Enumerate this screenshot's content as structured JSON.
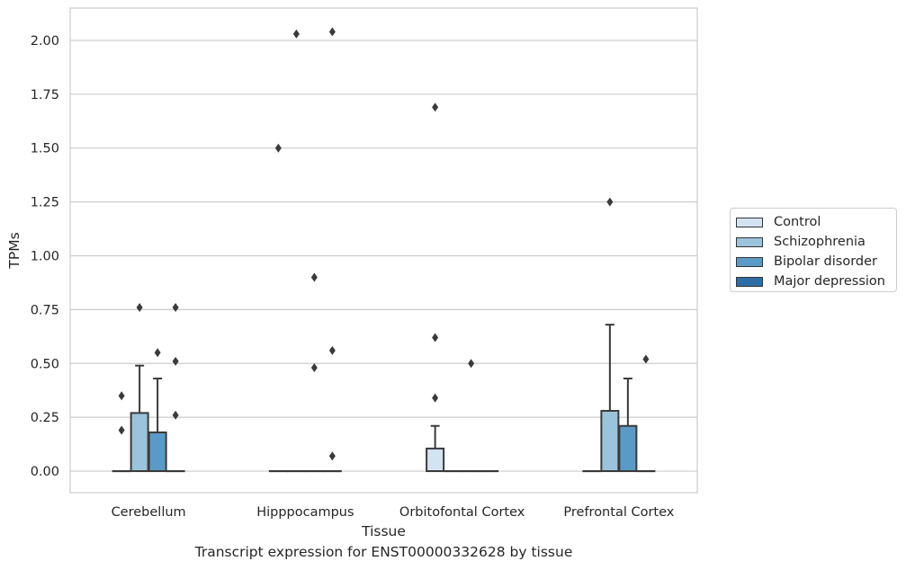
{
  "chart_data": {
    "type": "box",
    "title": "",
    "caption": "Transcript expression for ENST00000332628 by tissue",
    "xlabel": "Tissue",
    "ylabel": "TPMs",
    "ylim": [
      -0.1,
      2.15
    ],
    "yticks": [
      0.0,
      0.25,
      0.5,
      0.75,
      1.0,
      1.25,
      1.5,
      1.75,
      2.0
    ],
    "ytick_labels": [
      "0.00",
      "0.25",
      "0.50",
      "0.75",
      "1.00",
      "1.25",
      "1.50",
      "1.75",
      "2.00"
    ],
    "grid": "horizontal",
    "legend_position": "right-outside",
    "categories": [
      "Cerebellum",
      "Hipppocampus",
      "Orbitofontal Cortex",
      "Prefrontal Cortex"
    ],
    "series": [
      {
        "name": "Control",
        "color": "#d3e3f2",
        "boxes": [
          {
            "q1": 0,
            "median": 0,
            "q3": 0,
            "whislo": 0,
            "whishi": 0,
            "fliers": [
              0.19,
              0.35
            ]
          },
          {
            "q1": 0,
            "median": 0,
            "q3": 0,
            "whislo": 0,
            "whishi": 0,
            "fliers": [
              1.5
            ]
          },
          {
            "q1": 0,
            "median": 0,
            "q3": 0.105,
            "whislo": 0,
            "whishi": 0.21,
            "fliers": [
              0.34,
              0.62,
              1.69
            ]
          },
          {
            "q1": 0,
            "median": 0,
            "q3": 0,
            "whislo": 0,
            "whishi": 0,
            "fliers": []
          }
        ]
      },
      {
        "name": "Schizophrenia",
        "color": "#9cc3dc",
        "boxes": [
          {
            "q1": 0,
            "median": 0,
            "q3": 0.27,
            "whislo": 0,
            "whishi": 0.49,
            "fliers": [
              0.76
            ]
          },
          {
            "q1": 0,
            "median": 0,
            "q3": 0,
            "whislo": 0,
            "whishi": 0,
            "fliers": [
              2.03
            ]
          },
          {
            "q1": 0,
            "median": 0,
            "q3": 0,
            "whislo": 0,
            "whishi": 0,
            "fliers": []
          },
          {
            "q1": 0,
            "median": 0,
            "q3": 0.28,
            "whislo": 0,
            "whishi": 0.68,
            "fliers": [
              1.25
            ]
          }
        ]
      },
      {
        "name": "Bipolar disorder",
        "color": "#5b9ac6",
        "boxes": [
          {
            "q1": 0,
            "median": 0,
            "q3": 0.18,
            "whislo": 0,
            "whishi": 0.43,
            "fliers": [
              0.55
            ]
          },
          {
            "q1": 0,
            "median": 0,
            "q3": 0,
            "whislo": 0,
            "whishi": 0,
            "fliers": [
              0.48,
              0.9
            ]
          },
          {
            "q1": 0,
            "median": 0,
            "q3": 0,
            "whislo": 0,
            "whishi": 0,
            "fliers": [
              0.5
            ]
          },
          {
            "q1": 0,
            "median": 0,
            "q3": 0.21,
            "whislo": 0,
            "whishi": 0.43,
            "fliers": []
          }
        ]
      },
      {
        "name": "Major depression",
        "color": "#2e6ea6",
        "boxes": [
          {
            "q1": 0,
            "median": 0,
            "q3": 0,
            "whislo": 0,
            "whishi": 0,
            "fliers": [
              0.26,
              0.51,
              0.76
            ]
          },
          {
            "q1": 0,
            "median": 0,
            "q3": 0,
            "whislo": 0,
            "whishi": 0,
            "fliers": [
              0.07,
              0.56,
              2.04
            ]
          },
          {
            "q1": 0,
            "median": 0,
            "q3": 0,
            "whislo": 0,
            "whishi": 0,
            "fliers": []
          },
          {
            "q1": 0,
            "median": 0,
            "q3": 0,
            "whislo": 0,
            "whishi": 0,
            "fliers": [
              0.52
            ]
          }
        ]
      }
    ]
  }
}
